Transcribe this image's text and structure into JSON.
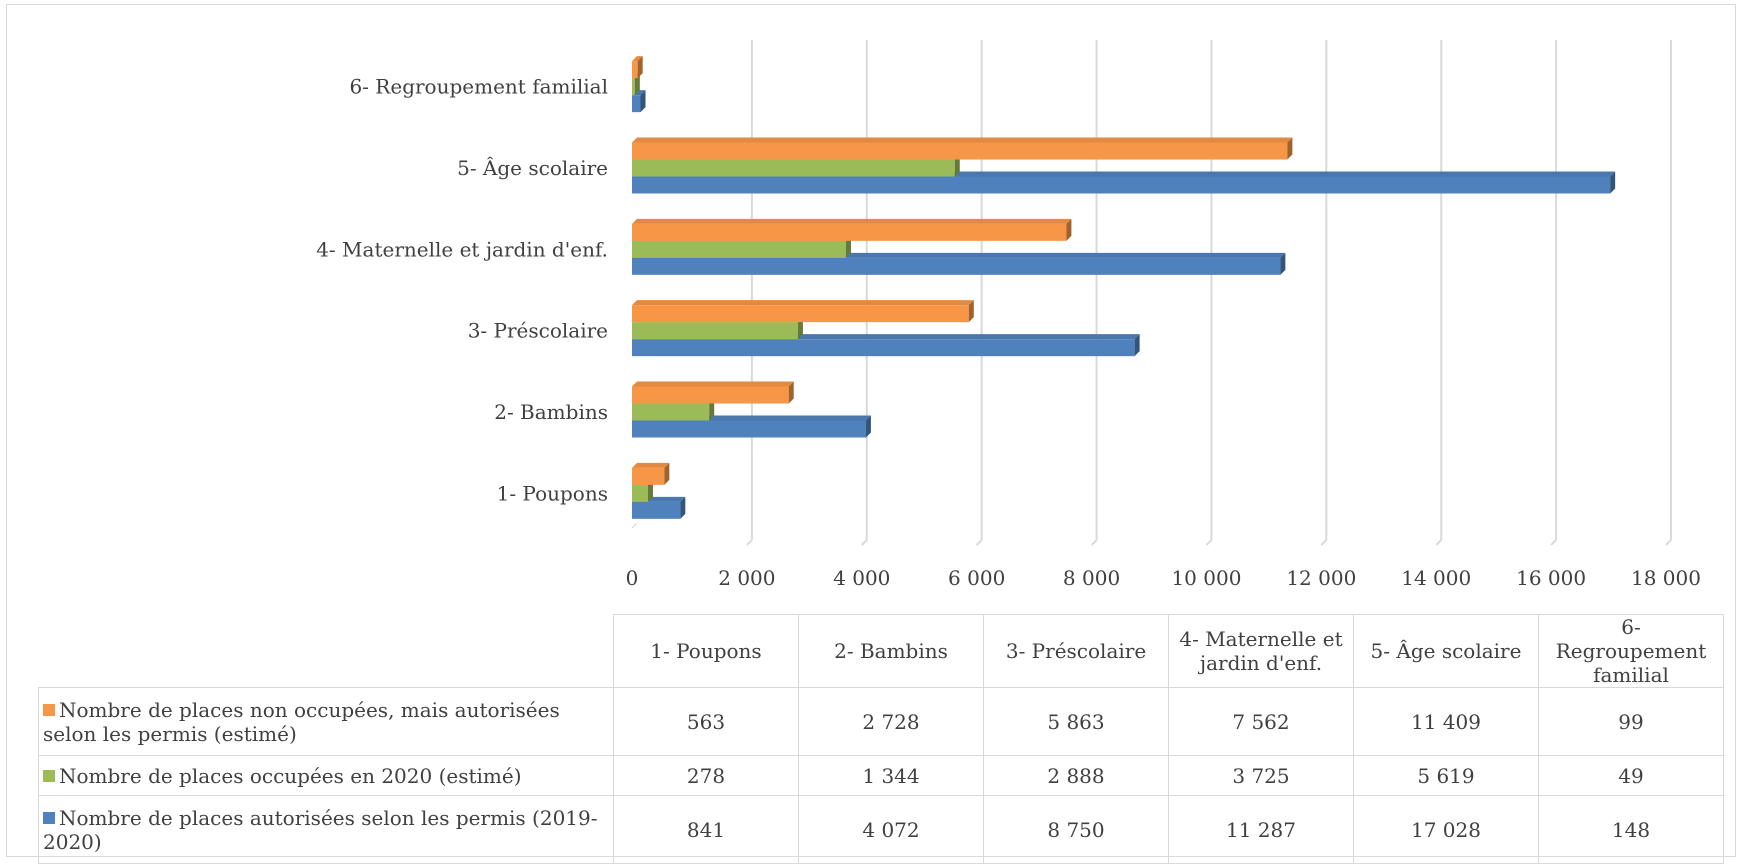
{
  "chart_data": {
    "type": "bar",
    "orientation": "horizontal",
    "style": "3d-clustered",
    "title": "",
    "xlabel": "",
    "ylabel": "",
    "xlim": [
      0,
      18000
    ],
    "x_ticks": [
      0,
      2000,
      4000,
      6000,
      8000,
      10000,
      12000,
      14000,
      16000,
      18000
    ],
    "x_tick_labels": [
      "0",
      "2 000",
      "4 000",
      "6 000",
      "8 000",
      "10 000",
      "12 000",
      "14 000",
      "16 000",
      "18 000"
    ],
    "grid": "vertical",
    "legend": "data-table",
    "categories": [
      "1- Poupons",
      "2- Bambins",
      "3- Préscolaire",
      "4- Maternelle et jardin d'enf.",
      "5- Âge scolaire",
      "6- Regroupement familial"
    ],
    "table_headers": [
      "1- Poupons",
      "2- Bambins",
      "3- Préscolaire",
      "4- Maternelle et jardin d'enf.",
      "5- Âge scolaire",
      "6- Regroupement familial"
    ],
    "series": [
      {
        "name": "Nombre de places non occupées, mais autorisées selon les permis (estimé)",
        "color": "#f79646",
        "values": [
          563,
          2728,
          5863,
          7562,
          11409,
          99
        ],
        "labels": [
          "563",
          "2 728",
          "5 863",
          "7 562",
          "11 409",
          "99"
        ]
      },
      {
        "name": "Nombre de places occupées en 2020 (estimé)",
        "color": "#9bbb59",
        "values": [
          278,
          1344,
          2888,
          3725,
          5619,
          49
        ],
        "labels": [
          "278",
          "1 344",
          "2 888",
          "3 725",
          "5 619",
          "49"
        ]
      },
      {
        "name": "Nombre de places autorisées selon les permis (2019-2020)",
        "color": "#4f81bd",
        "values": [
          841,
          4072,
          8750,
          11287,
          17028,
          148
        ],
        "labels": [
          "841",
          "4 072",
          "8 750",
          "11 287",
          "17 028",
          "148"
        ]
      }
    ]
  }
}
